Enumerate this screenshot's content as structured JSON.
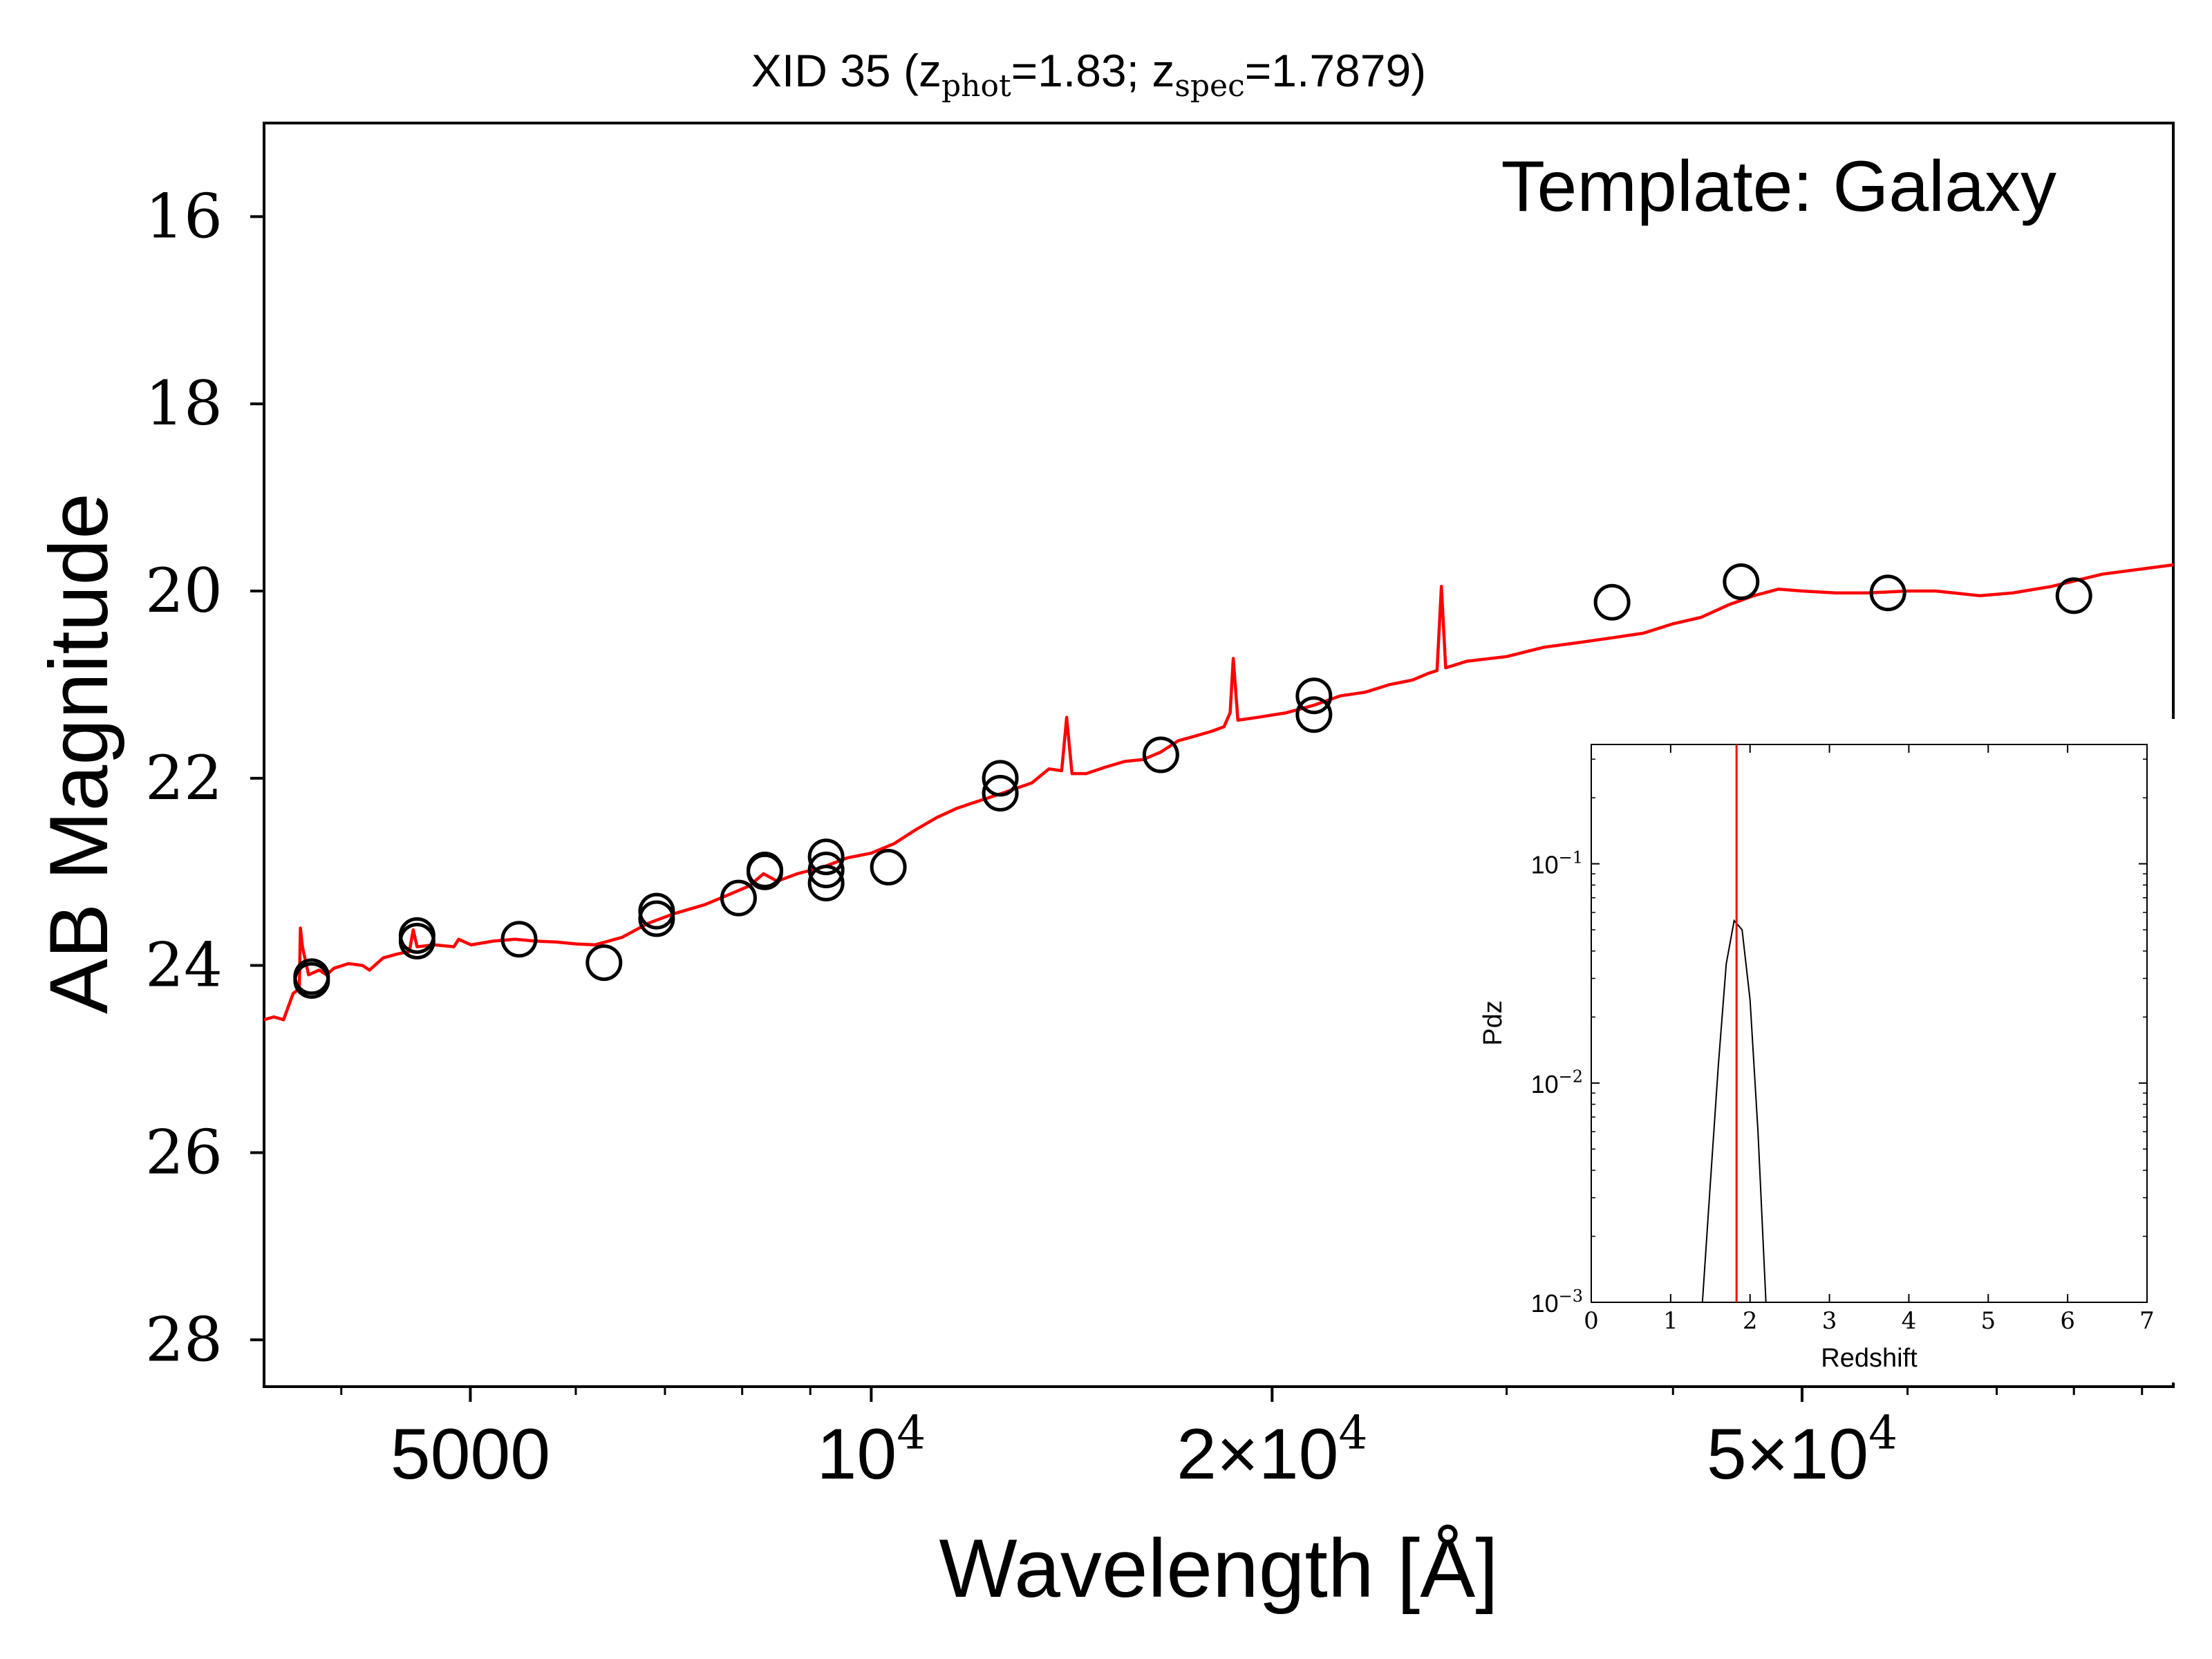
{
  "chart_data": [
    {
      "type": "scatter",
      "title": "XID 35 (zphot=1.83; zspec=1.7879)",
      "title_parts": {
        "prefix": "XID 35 (z",
        "sub1": "phot",
        "mid": "=1.83; z",
        "sub2": "spec",
        "suffix": "=1.7879)"
      },
      "annotation": "Template: Galaxy",
      "xlabel": "Wavelength [Å]",
      "ylabel": "AB Magnitude",
      "xscale": "log",
      "xlim": [
        3500,
        95000
      ],
      "ylim": [
        28.5,
        15.0
      ],
      "y_inverted": true,
      "xticks": [
        {
          "value": 5000,
          "label": "5000"
        },
        {
          "value": 10000,
          "label": "10",
          "sup": "4"
        },
        {
          "value": 20000,
          "label": "2×10",
          "sup": "4"
        },
        {
          "value": 50000,
          "label": "5×10",
          "sup": "4"
        }
      ],
      "yticks": [
        16,
        18,
        20,
        22,
        24,
        26,
        28
      ],
      "grid": false,
      "series": [
        {
          "kind": "observed photometry",
          "marker": "open-circle",
          "color": "#000000",
          "points": [
            {
              "x": 3800,
              "y": 24.12
            },
            {
              "x": 3800,
              "y": 24.16
            },
            {
              "x": 4560,
              "y": 23.68
            },
            {
              "x": 4560,
              "y": 23.74
            },
            {
              "x": 5440,
              "y": 23.72
            },
            {
              "x": 6300,
              "y": 23.97
            },
            {
              "x": 6900,
              "y": 23.42
            },
            {
              "x": 6900,
              "y": 23.5
            },
            {
              "x": 7950,
              "y": 23.28
            },
            {
              "x": 8320,
              "y": 23.0
            },
            {
              "x": 8320,
              "y": 22.98
            },
            {
              "x": 9250,
              "y": 22.84
            },
            {
              "x": 9250,
              "y": 22.98
            },
            {
              "x": 9250,
              "y": 23.12
            },
            {
              "x": 10300,
              "y": 22.95
            },
            {
              "x": 12500,
              "y": 22.0
            },
            {
              "x": 12500,
              "y": 22.16
            },
            {
              "x": 16500,
              "y": 21.75
            },
            {
              "x": 21500,
              "y": 21.12
            },
            {
              "x": 21500,
              "y": 21.32
            },
            {
              "x": 36000,
              "y": 20.12
            },
            {
              "x": 45000,
              "y": 19.9
            },
            {
              "x": 58000,
              "y": 20.02
            },
            {
              "x": 80000,
              "y": 20.05
            }
          ]
        },
        {
          "kind": "best-fit template",
          "line": "solid",
          "color": "#ff0000",
          "points": [
            [
              3500,
              24.58
            ],
            [
              3560,
              24.55
            ],
            [
              3620,
              24.58
            ],
            [
              3680,
              24.3
            ],
            [
              3720,
              24.25
            ],
            [
              3727,
              23.6
            ],
            [
              3740,
              23.8
            ],
            [
              3780,
              24.1
            ],
            [
              3850,
              24.05
            ],
            [
              3900,
              24.1
            ],
            [
              3950,
              24.03
            ],
            [
              4050,
              23.98
            ],
            [
              4150,
              24.0
            ],
            [
              4200,
              24.05
            ],
            [
              4300,
              23.92
            ],
            [
              4400,
              23.88
            ],
            [
              4500,
              23.85
            ],
            [
              4530,
              23.62
            ],
            [
              4560,
              23.8
            ],
            [
              4700,
              23.78
            ],
            [
              4860,
              23.8
            ],
            [
              4900,
              23.72
            ],
            [
              5007,
              23.78
            ],
            [
              5200,
              23.74
            ],
            [
              5400,
              23.72
            ],
            [
              5600,
              23.74
            ],
            [
              5800,
              23.75
            ],
            [
              6000,
              23.77
            ],
            [
              6200,
              23.78
            ],
            [
              6500,
              23.7
            ],
            [
              6800,
              23.55
            ],
            [
              7100,
              23.45
            ],
            [
              7500,
              23.35
            ],
            [
              7800,
              23.25
            ],
            [
              8100,
              23.15
            ],
            [
              8300,
              23.02
            ],
            [
              8500,
              23.1
            ],
            [
              8800,
              23.02
            ],
            [
              9200,
              22.95
            ],
            [
              9600,
              22.85
            ],
            [
              10000,
              22.8
            ],
            [
              10400,
              22.7
            ],
            [
              10800,
              22.55
            ],
            [
              11200,
              22.42
            ],
            [
              11600,
              22.32
            ],
            [
              12000,
              22.25
            ],
            [
              12600,
              22.15
            ],
            [
              13200,
              22.05
            ],
            [
              13600,
              21.9
            ],
            [
              13900,
              21.92
            ],
            [
              14020,
              21.35
            ],
            [
              14150,
              21.95
            ],
            [
              14500,
              21.95
            ],
            [
              15000,
              21.88
            ],
            [
              15500,
              21.82
            ],
            [
              16000,
              21.8
            ],
            [
              16500,
              21.72
            ],
            [
              17000,
              21.6
            ],
            [
              17500,
              21.55
            ],
            [
              18000,
              21.5
            ],
            [
              18400,
              21.45
            ],
            [
              18600,
              21.3
            ],
            [
              18700,
              20.72
            ],
            [
              18850,
              21.38
            ],
            [
              19500,
              21.35
            ],
            [
              20500,
              21.3
            ],
            [
              21500,
              21.22
            ],
            [
              22500,
              21.12
            ],
            [
              23500,
              21.08
            ],
            [
              24500,
              21.0
            ],
            [
              25500,
              20.95
            ],
            [
              26200,
              20.88
            ],
            [
              26600,
              20.85
            ],
            [
              26800,
              19.95
            ],
            [
              27000,
              20.82
            ],
            [
              28000,
              20.75
            ],
            [
              30000,
              20.7
            ],
            [
              32000,
              20.6
            ],
            [
              34000,
              20.55
            ],
            [
              36000,
              20.5
            ],
            [
              38000,
              20.45
            ],
            [
              40000,
              20.35
            ],
            [
              42000,
              20.28
            ],
            [
              44000,
              20.15
            ],
            [
              46000,
              20.05
            ],
            [
              48000,
              19.98
            ],
            [
              50000,
              20.0
            ],
            [
              53000,
              20.02
            ],
            [
              56000,
              20.02
            ],
            [
              60000,
              20.0
            ],
            [
              63000,
              20.0
            ],
            [
              65000,
              20.02
            ],
            [
              68000,
              20.05
            ],
            [
              72000,
              20.02
            ],
            [
              77000,
              19.95
            ],
            [
              84000,
              19.82
            ],
            [
              95000,
              19.72
            ]
          ]
        }
      ]
    },
    {
      "type": "line",
      "xlabel": "Redshift",
      "ylabel": "Pdz",
      "xlim": [
        0,
        7
      ],
      "ylim": [
        0.001,
        0.35
      ],
      "yscale": "log",
      "xticks": [
        0,
        1,
        2,
        3,
        4,
        5,
        6,
        7
      ],
      "yticks": [
        {
          "value": 0.1,
          "label": "10",
          "sup": "−1"
        },
        {
          "value": 0.01,
          "label": "10",
          "sup": "−2"
        },
        {
          "value": 0.001,
          "label": "10",
          "sup": "−3"
        }
      ],
      "reference_line": {
        "x": 1.83,
        "color": "#ff0000"
      },
      "series": [
        {
          "color": "#000000",
          "points": [
            [
              1.4,
              0.001
            ],
            [
              1.5,
              0.0035
            ],
            [
              1.6,
              0.012
            ],
            [
              1.7,
              0.035
            ],
            [
              1.8,
              0.055
            ],
            [
              1.9,
              0.05
            ],
            [
              2.0,
              0.024
            ],
            [
              2.1,
              0.006
            ],
            [
              2.2,
              0.001
            ]
          ]
        }
      ]
    }
  ]
}
